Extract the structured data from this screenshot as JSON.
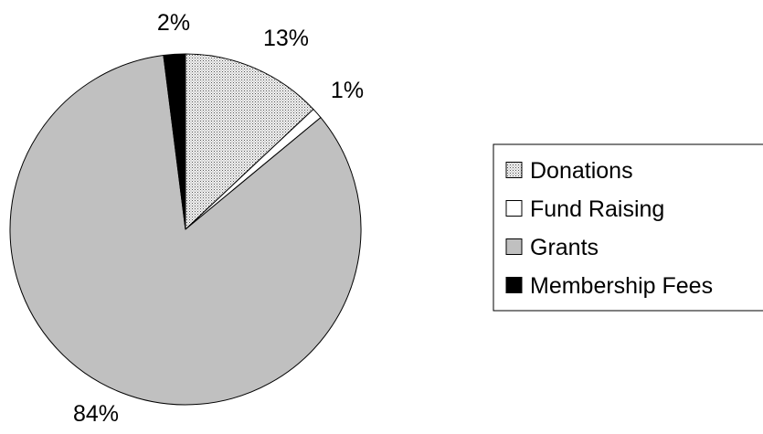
{
  "chart_data": {
    "type": "pie",
    "title": "",
    "categories": [
      "Donations",
      "Fund Raising",
      "Grants",
      "Membership Fees"
    ],
    "values": [
      13,
      1,
      84,
      2
    ],
    "data_labels": [
      "13%",
      "1%",
      "84%",
      "2%"
    ],
    "legend": {
      "placement": "right",
      "entries": [
        "Donations",
        "Fund Raising",
        "Grants",
        "Membership Fees"
      ]
    },
    "colors": [
      "#e4e4e4",
      "#ffffff",
      "#c0c0c0",
      "#000000"
    ],
    "patterns": [
      "dotted",
      "solid",
      "solid",
      "solid"
    ]
  }
}
